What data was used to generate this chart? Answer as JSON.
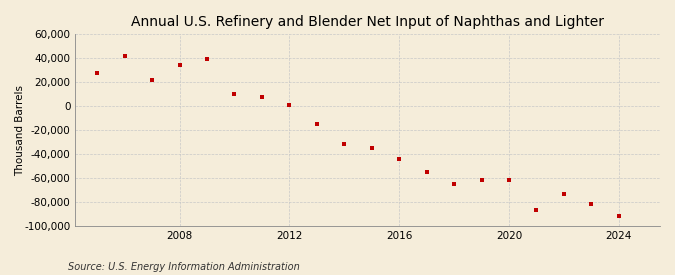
{
  "title": "Annual U.S. Refinery and Blender Net Input of Naphthas and Lighter",
  "ylabel": "Thousand Barrels",
  "source": "Source: U.S. Energy Information Administration",
  "years": [
    2005,
    2006,
    2007,
    2008,
    2009,
    2010,
    2011,
    2012,
    2013,
    2014,
    2015,
    2016,
    2017,
    2018,
    2019,
    2020,
    2021,
    2022,
    2023,
    2024
  ],
  "values": [
    28000,
    42000,
    22000,
    34000,
    39000,
    10000,
    8000,
    1000,
    -15000,
    -32000,
    -35000,
    -44000,
    -55000,
    -65000,
    -62000,
    -62000,
    -87000,
    -73000,
    -82000,
    -92000
  ],
  "marker_color": "#C00000",
  "background_color": "#F5EDDA",
  "plot_background": "#F5EDDA",
  "grid_color": "#C8C8C8",
  "ylim": [
    -100000,
    60000
  ],
  "yticks": [
    -100000,
    -80000,
    -60000,
    -40000,
    -20000,
    0,
    20000,
    40000,
    60000
  ],
  "xtick_positions": [
    2008,
    2012,
    2016,
    2020,
    2024
  ],
  "xlim_left": 2004.2,
  "xlim_right": 2025.5,
  "title_fontsize": 10,
  "label_fontsize": 7.5,
  "source_fontsize": 7
}
